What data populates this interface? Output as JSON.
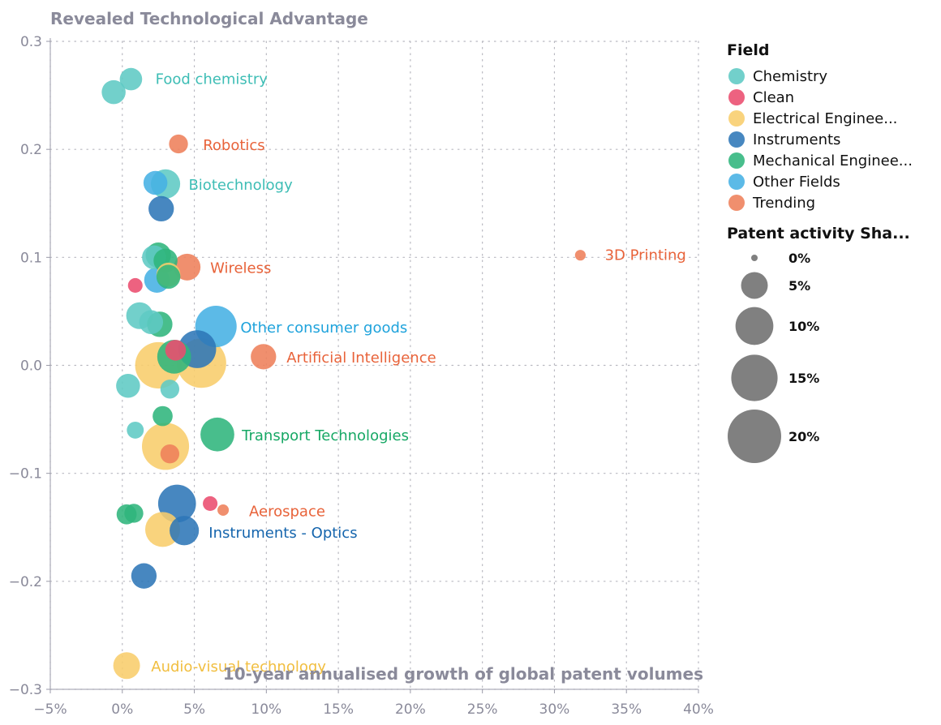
{
  "chart_data": {
    "type": "scatter",
    "title": "Revealed Technological Advantage",
    "xlabel": "10-year annualised growth of global patent volumes",
    "ylabel": "Revealed Technological Advantage",
    "xlim": [
      -0.05,
      0.4
    ],
    "ylim": [
      -0.3,
      0.3
    ],
    "x_ticks": [
      -0.05,
      0,
      0.05,
      0.1,
      0.15,
      0.2,
      0.25,
      0.3,
      0.35,
      0.4
    ],
    "x_tick_labels": [
      "−5%",
      "0%",
      "5%",
      "10%",
      "15%",
      "20%",
      "25%",
      "30%",
      "35%",
      "40%"
    ],
    "y_ticks": [
      0.3,
      0.2,
      0.1,
      0.0,
      -0.1,
      -0.2,
      -0.3
    ],
    "y_tick_labels": [
      "0.3",
      "0.2",
      "0.1",
      "0.0",
      "−0.1",
      "−0.2",
      "−0.3"
    ],
    "grid": true,
    "legend": {
      "color_title": "Field",
      "fields": [
        {
          "name": "Chemistry",
          "color": "#5ecac4"
        },
        {
          "name": "Clean",
          "color": "#ea4c6e"
        },
        {
          "name": "Electrical Enginee...",
          "color": "#f8cd6b"
        },
        {
          "name": "Instruments",
          "color": "#2e76b7"
        },
        {
          "name": "Mechanical Enginee...",
          "color": "#2fb57c"
        },
        {
          "name": "Other Fields",
          "color": "#45b0e4"
        },
        {
          "name": "Trending",
          "color": "#ee7f5a"
        }
      ],
      "size_title": "Patent activity Sha...",
      "size_color": "#808080",
      "sizes": [
        {
          "label": "0%",
          "value": 0
        },
        {
          "label": "5%",
          "value": 5
        },
        {
          "label": "10%",
          "value": 10
        },
        {
          "label": "15%",
          "value": 15
        },
        {
          "label": "20%",
          "value": 20
        }
      ],
      "placement": "right"
    },
    "points": [
      {
        "field": "Instruments",
        "x": 0.015,
        "y": -0.195,
        "share": 4.5
      },
      {
        "field": "Electrical Enginee...",
        "x": 0.003,
        "y": -0.278,
        "share": 5
      },
      {
        "field": "Mechanical Enginee...",
        "x": 0.003,
        "y": -0.138,
        "share": 2.8
      },
      {
        "field": "Mechanical Enginee...",
        "x": 0.008,
        "y": -0.137,
        "share": 2.5
      },
      {
        "field": "Electrical Enginee...",
        "x": 0.028,
        "y": -0.152,
        "share": 8.5
      },
      {
        "field": "Instruments",
        "x": 0.043,
        "y": -0.153,
        "share": 6
      },
      {
        "field": "Instruments",
        "x": 0.038,
        "y": -0.128,
        "share": 10
      },
      {
        "field": "Clean",
        "x": 0.061,
        "y": -0.128,
        "share": 1.5
      },
      {
        "field": "Trending",
        "x": 0.07,
        "y": -0.134,
        "share": 0.9
      },
      {
        "field": "Chemistry",
        "x": 0.009,
        "y": -0.06,
        "share": 2
      },
      {
        "field": "Mechanical Enginee...",
        "x": 0.028,
        "y": -0.047,
        "share": 2.8
      },
      {
        "field": "Electrical Enginee...",
        "x": 0.03,
        "y": -0.075,
        "share": 15.5
      },
      {
        "field": "Trending",
        "x": 0.033,
        "y": -0.082,
        "share": 2.5
      },
      {
        "field": "Mechanical Enginee...",
        "x": 0.066,
        "y": -0.064,
        "share": 8
      },
      {
        "field": "Chemistry",
        "x": 0.004,
        "y": -0.019,
        "share": 4
      },
      {
        "field": "Chemistry",
        "x": 0.033,
        "y": -0.022,
        "share": 2.5
      },
      {
        "field": "Electrical Enginee...",
        "x": 0.025,
        "y": 0.0,
        "share": 15
      },
      {
        "field": "Electrical Enginee...",
        "x": 0.055,
        "y": 0.002,
        "share": 17
      },
      {
        "field": "Mechanical Enginee...",
        "x": 0.036,
        "y": 0.008,
        "share": 8
      },
      {
        "field": "Clean",
        "x": 0.037,
        "y": 0.014,
        "share": 3
      },
      {
        "field": "Instruments",
        "x": 0.052,
        "y": 0.015,
        "share": 10
      },
      {
        "field": "Other Fields",
        "x": 0.065,
        "y": 0.036,
        "share": 12
      },
      {
        "field": "Trending",
        "x": 0.098,
        "y": 0.008,
        "share": 4.5
      },
      {
        "field": "Chemistry",
        "x": 0.012,
        "y": 0.046,
        "share": 5
      },
      {
        "field": "Chemistry",
        "x": 0.02,
        "y": 0.04,
        "share": 4
      },
      {
        "field": "Mechanical Enginee...",
        "x": 0.026,
        "y": 0.038,
        "share": 4.5
      },
      {
        "field": "Clean",
        "x": 0.009,
        "y": 0.074,
        "share": 1.5
      },
      {
        "field": "Chemistry",
        "x": 0.022,
        "y": 0.1,
        "share": 4
      },
      {
        "field": "Mechanical Enginee...",
        "x": 0.025,
        "y": 0.102,
        "share": 4.5
      },
      {
        "field": "Mechanical Enginee...",
        "x": 0.03,
        "y": 0.097,
        "share": 4
      },
      {
        "field": "Electrical Enginee...",
        "x": 0.032,
        "y": 0.084,
        "share": 4
      },
      {
        "field": "Other Fields",
        "x": 0.024,
        "y": 0.079,
        "share": 4.5
      },
      {
        "field": "Mechanical Enginee...",
        "x": 0.032,
        "y": 0.082,
        "share": 4
      },
      {
        "field": "Trending",
        "x": 0.045,
        "y": 0.091,
        "share": 5
      },
      {
        "field": "Other Fields",
        "x": 0.023,
        "y": 0.169,
        "share": 4
      },
      {
        "field": "Chemistry",
        "x": 0.03,
        "y": 0.168,
        "share": 6
      },
      {
        "field": "Instruments",
        "x": 0.027,
        "y": 0.145,
        "share": 4.5
      },
      {
        "field": "Trending",
        "x": 0.039,
        "y": 0.205,
        "share": 2.5
      },
      {
        "field": "Chemistry",
        "x": -0.006,
        "y": 0.253,
        "share": 4
      },
      {
        "field": "Chemistry",
        "x": 0.006,
        "y": 0.265,
        "share": 3.5
      },
      {
        "field": "Trending",
        "x": 0.318,
        "y": 0.102,
        "share": 0.8
      }
    ],
    "annotations": [
      {
        "text": "Food chemistry",
        "x": 0.023,
        "y": 0.265,
        "field": "Chemistry",
        "color": "#3dbdb5"
      },
      {
        "text": "Robotics",
        "x": 0.056,
        "y": 0.204,
        "field": "Trending",
        "color": "#e8633a"
      },
      {
        "text": "Biotechnology",
        "x": 0.046,
        "y": 0.167,
        "field": "Chemistry",
        "color": "#3dbdb5"
      },
      {
        "text": "3D Printing",
        "x": 0.335,
        "y": 0.102,
        "field": "Trending",
        "color": "#e8633a"
      },
      {
        "text": "Wireless",
        "x": 0.061,
        "y": 0.09,
        "field": "Trending",
        "color": "#e8633a"
      },
      {
        "text": "Other consumer goods",
        "x": 0.082,
        "y": 0.035,
        "field": "Other Fields",
        "color": "#1fa3dc"
      },
      {
        "text": "Artificial Intelligence",
        "x": 0.114,
        "y": 0.007,
        "field": "Trending",
        "color": "#e8633a"
      },
      {
        "text": "Transport Technologies",
        "x": 0.083,
        "y": -0.065,
        "field": "Mechanical Enginee...",
        "color": "#17a865"
      },
      {
        "text": "Aerospace",
        "x": 0.088,
        "y": -0.135,
        "field": "Trending",
        "color": "#e8633a"
      },
      {
        "text": "Instruments - Optics",
        "x": 0.06,
        "y": -0.155,
        "field": "Instruments",
        "color": "#1565ad"
      },
      {
        "text": "Audio-visual technology",
        "x": 0.02,
        "y": -0.279,
        "field": "Electrical Enginee...",
        "color": "#f1be3f"
      }
    ]
  }
}
